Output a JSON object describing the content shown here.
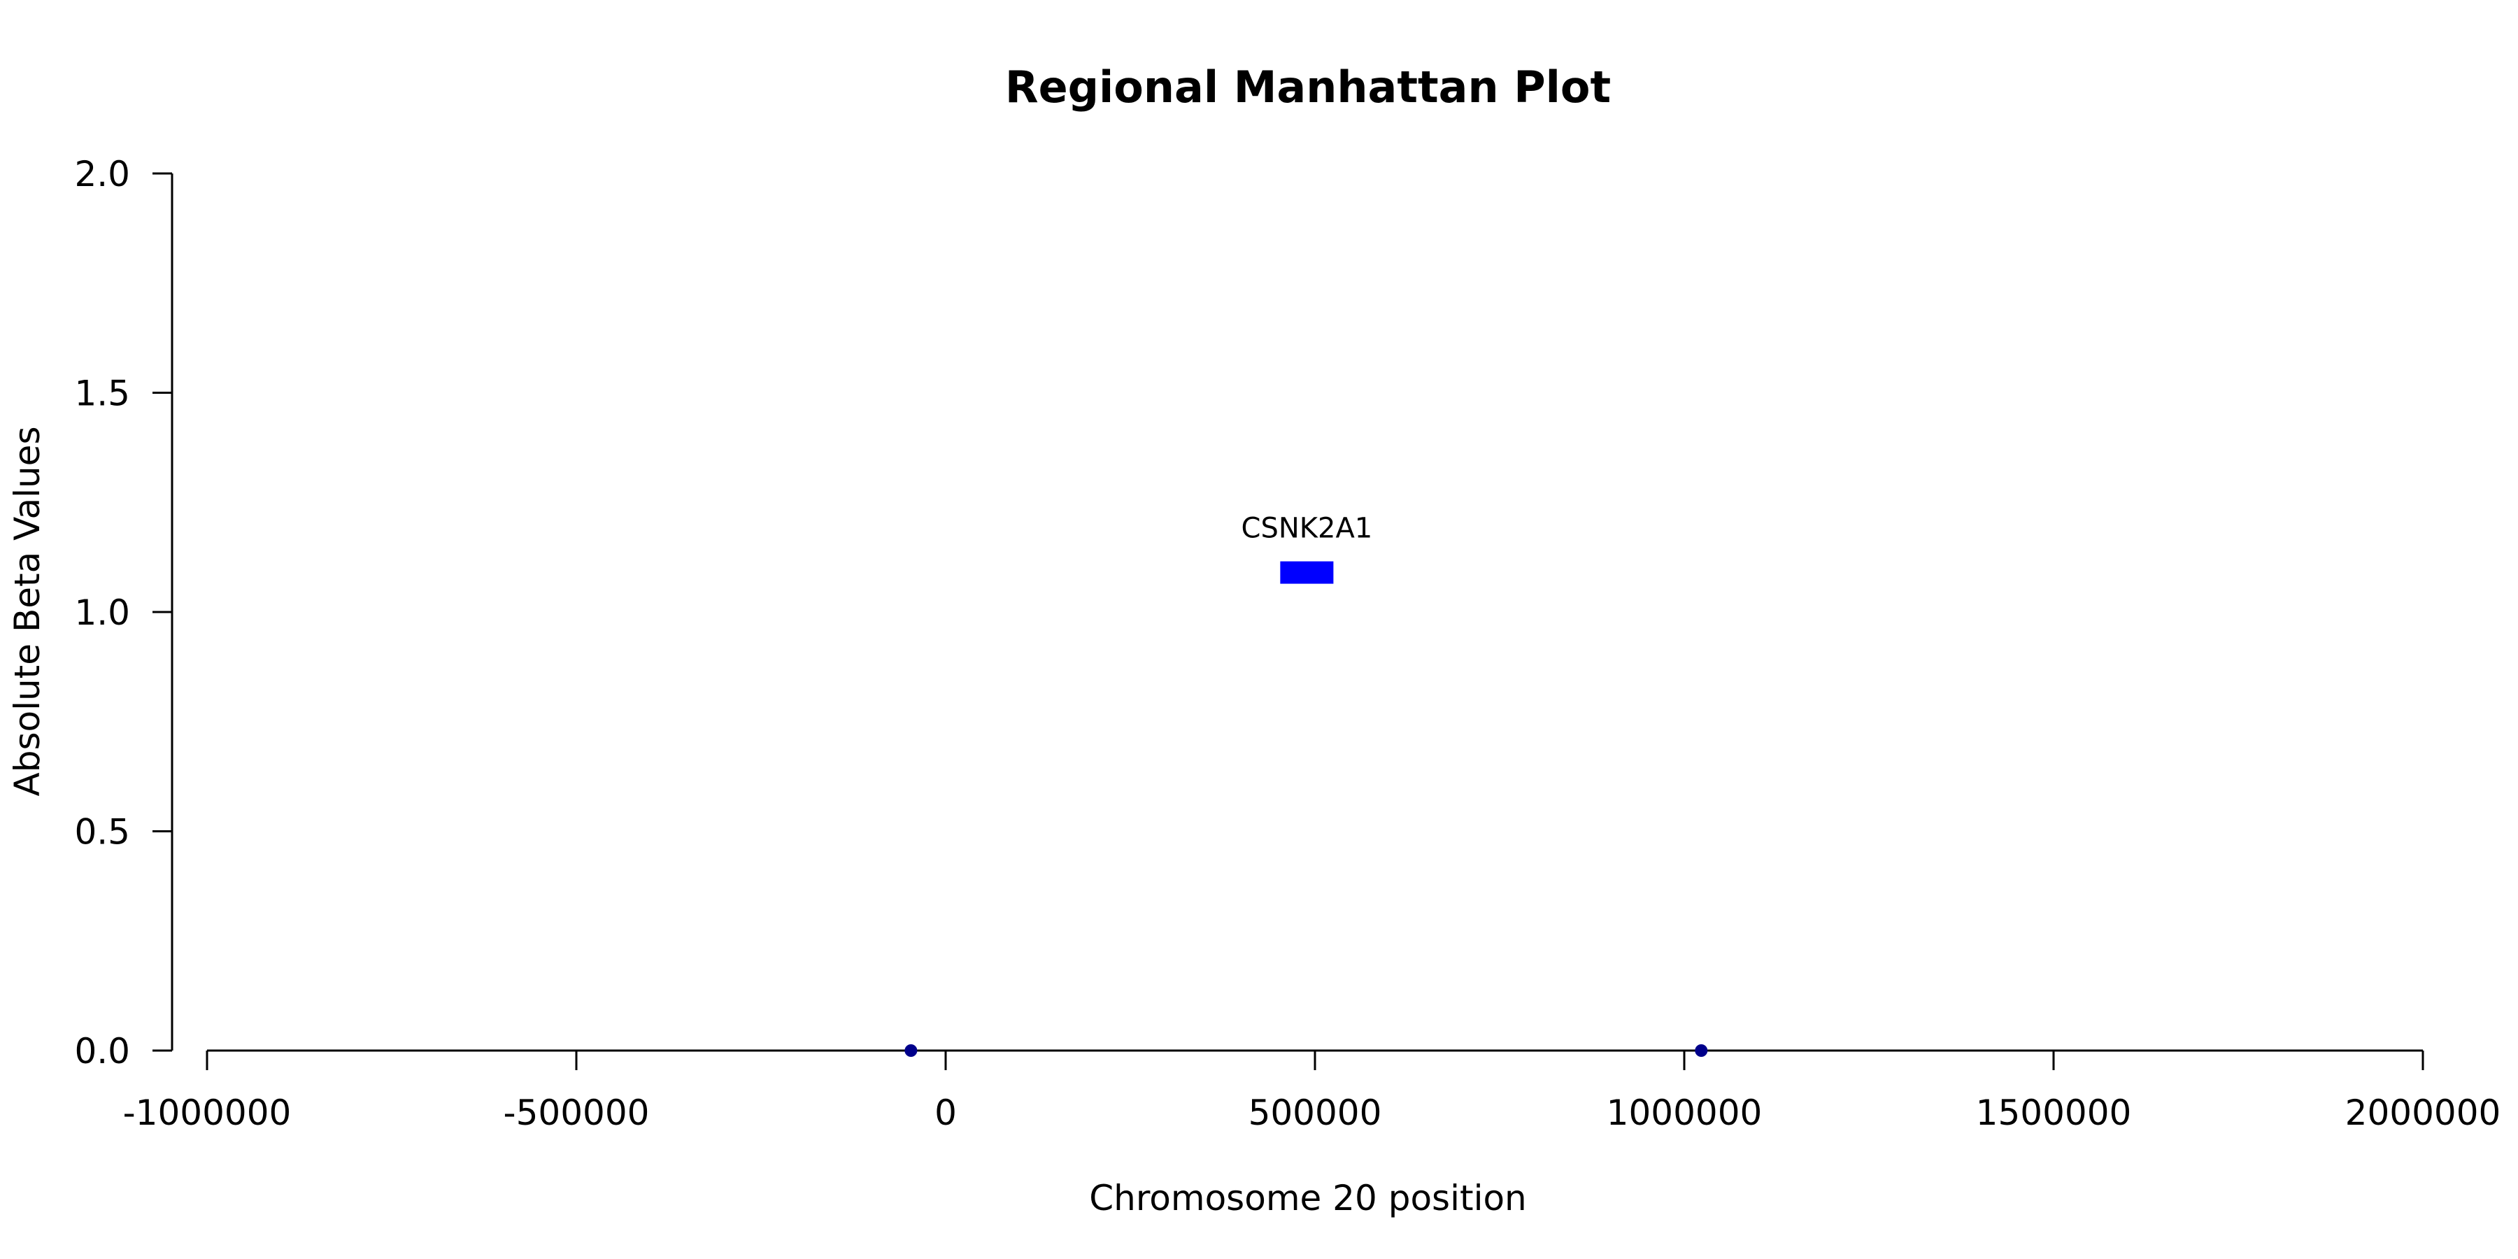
{
  "chart_data": {
    "type": "scatter",
    "title": "Regional Manhattan Plot",
    "xlabel": "Chromosome 20 position",
    "ylabel": "Absolute Beta Values",
    "xlim": [
      -1000000,
      2000000
    ],
    "ylim": [
      0,
      2
    ],
    "x_ticks": [
      -1000000,
      -500000,
      0,
      500000,
      1000000,
      1500000,
      2000000
    ],
    "x_tick_labels": [
      "-1000000",
      "-500000",
      "0",
      "500000",
      "1000000",
      "1500000",
      "2000000"
    ],
    "y_ticks": [
      0,
      0.5,
      1,
      1.5,
      2
    ],
    "y_tick_labels": [
      "0.0",
      "0.5",
      "1.0",
      "1.5",
      "2.0"
    ],
    "points": [
      {
        "x": -47000,
        "y": 0
      },
      {
        "x": 1023000,
        "y": 0
      }
    ],
    "point_color": "#00008b",
    "genes": [
      {
        "name": "CSNK2A1",
        "start": 453000,
        "end": 525000,
        "y": 1.09,
        "color": "#0000ff"
      }
    ],
    "grid": false,
    "legend": "none"
  }
}
